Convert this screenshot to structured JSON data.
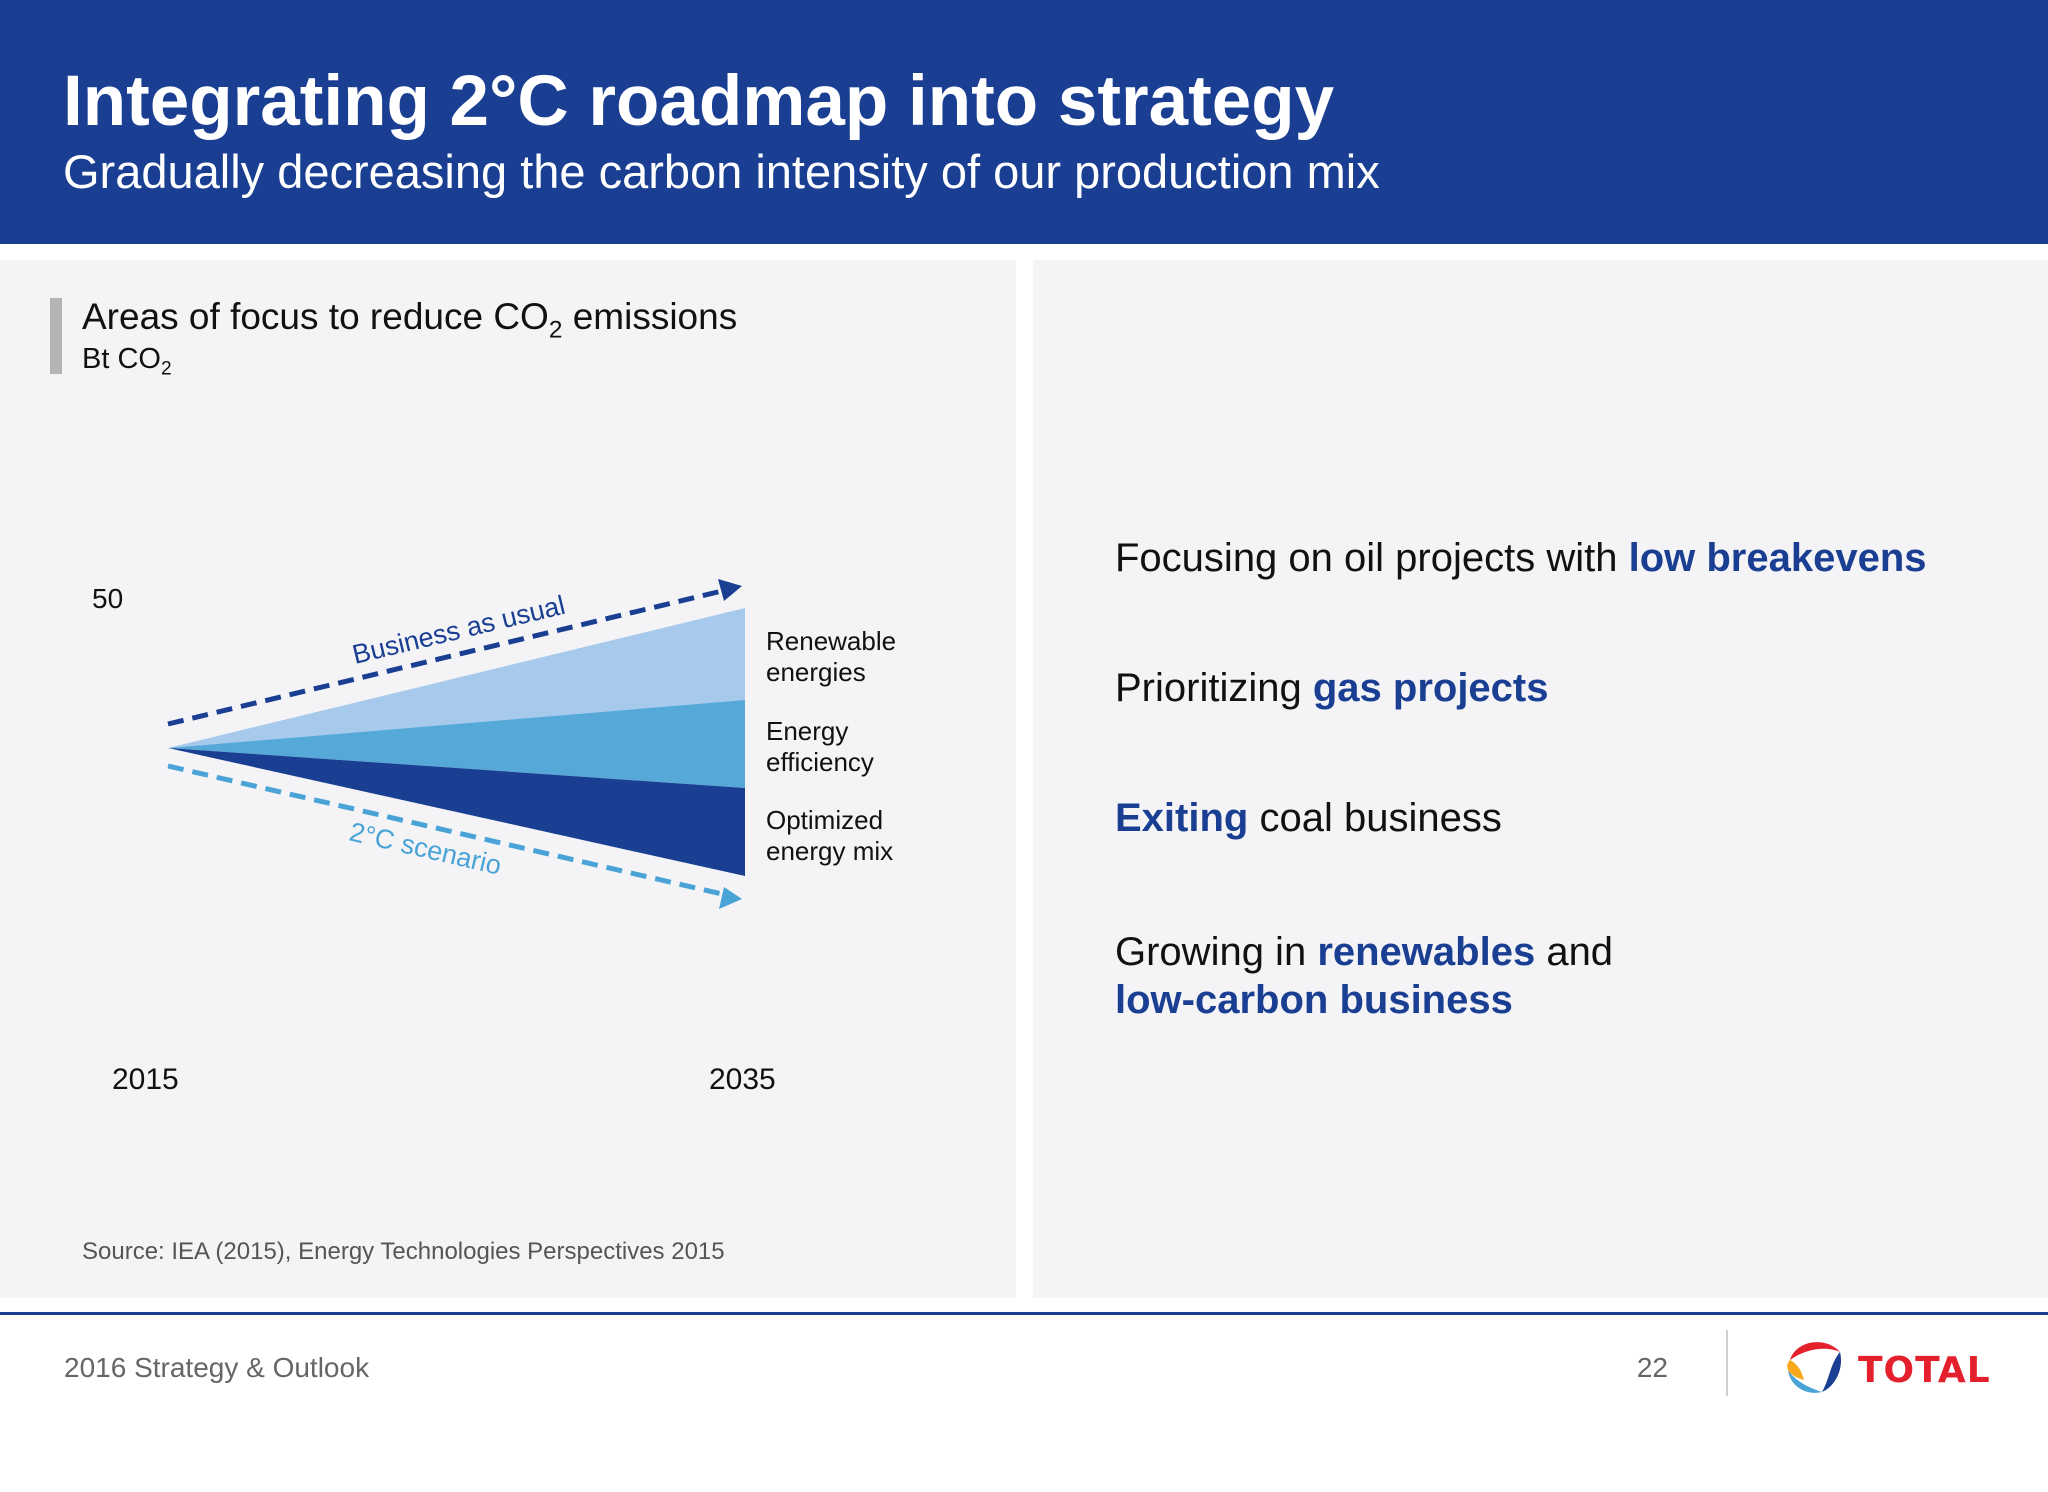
{
  "header": {
    "title": "Integrating 2°C roadmap into strategy",
    "subtitle": "Gradually decreasing the carbon intensity of our production mix"
  },
  "chart_panel": {
    "title_prefix": "Areas of focus to reduce CO",
    "title_sub": "2",
    "title_suffix": " emissions",
    "unit_prefix": "Bt CO",
    "unit_sub": "2",
    "source": "Source: IEA (2015), Energy Technologies Perspectives 2015"
  },
  "chart_data": {
    "type": "area",
    "x": [
      "2015",
      "2035"
    ],
    "y_tick_label": "50",
    "lines": [
      {
        "name": "Business as usual",
        "style": "dashed",
        "color": "#1a3f92"
      },
      {
        "name": "2°C scenario",
        "style": "dashed",
        "color": "#4aa3d6"
      }
    ],
    "wedges": [
      {
        "label_line1": "Renewable",
        "label_line2": "energies",
        "color": "#a7c9ec"
      },
      {
        "label_line1": "Energy",
        "label_line2": "efficiency",
        "color": "#55a8d8"
      },
      {
        "label_line1": "Optimized",
        "label_line2": "energy mix",
        "color": "#1a3f92"
      }
    ]
  },
  "bullets": [
    {
      "before": "Focusing on oil projects with ",
      "highlight": "low breakevens",
      "after": ""
    },
    {
      "before": "Prioritizing ",
      "highlight": "gas projects",
      "after": ""
    },
    {
      "before": "",
      "highlight": "Exiting",
      "after": " coal business"
    },
    {
      "before": "Growing in ",
      "highlight": "renewables",
      "after": " and",
      "line2": "low-carbon business"
    }
  ],
  "footer": {
    "label": "2016 Strategy & Outlook",
    "page_number": "22",
    "logo_text": "TOTAL"
  },
  "colors": {
    "brand_blue": "#1a3f92",
    "light_blue": "#a7c9ec",
    "mid_blue": "#55a8d8",
    "logo_red": "#e3202b"
  }
}
